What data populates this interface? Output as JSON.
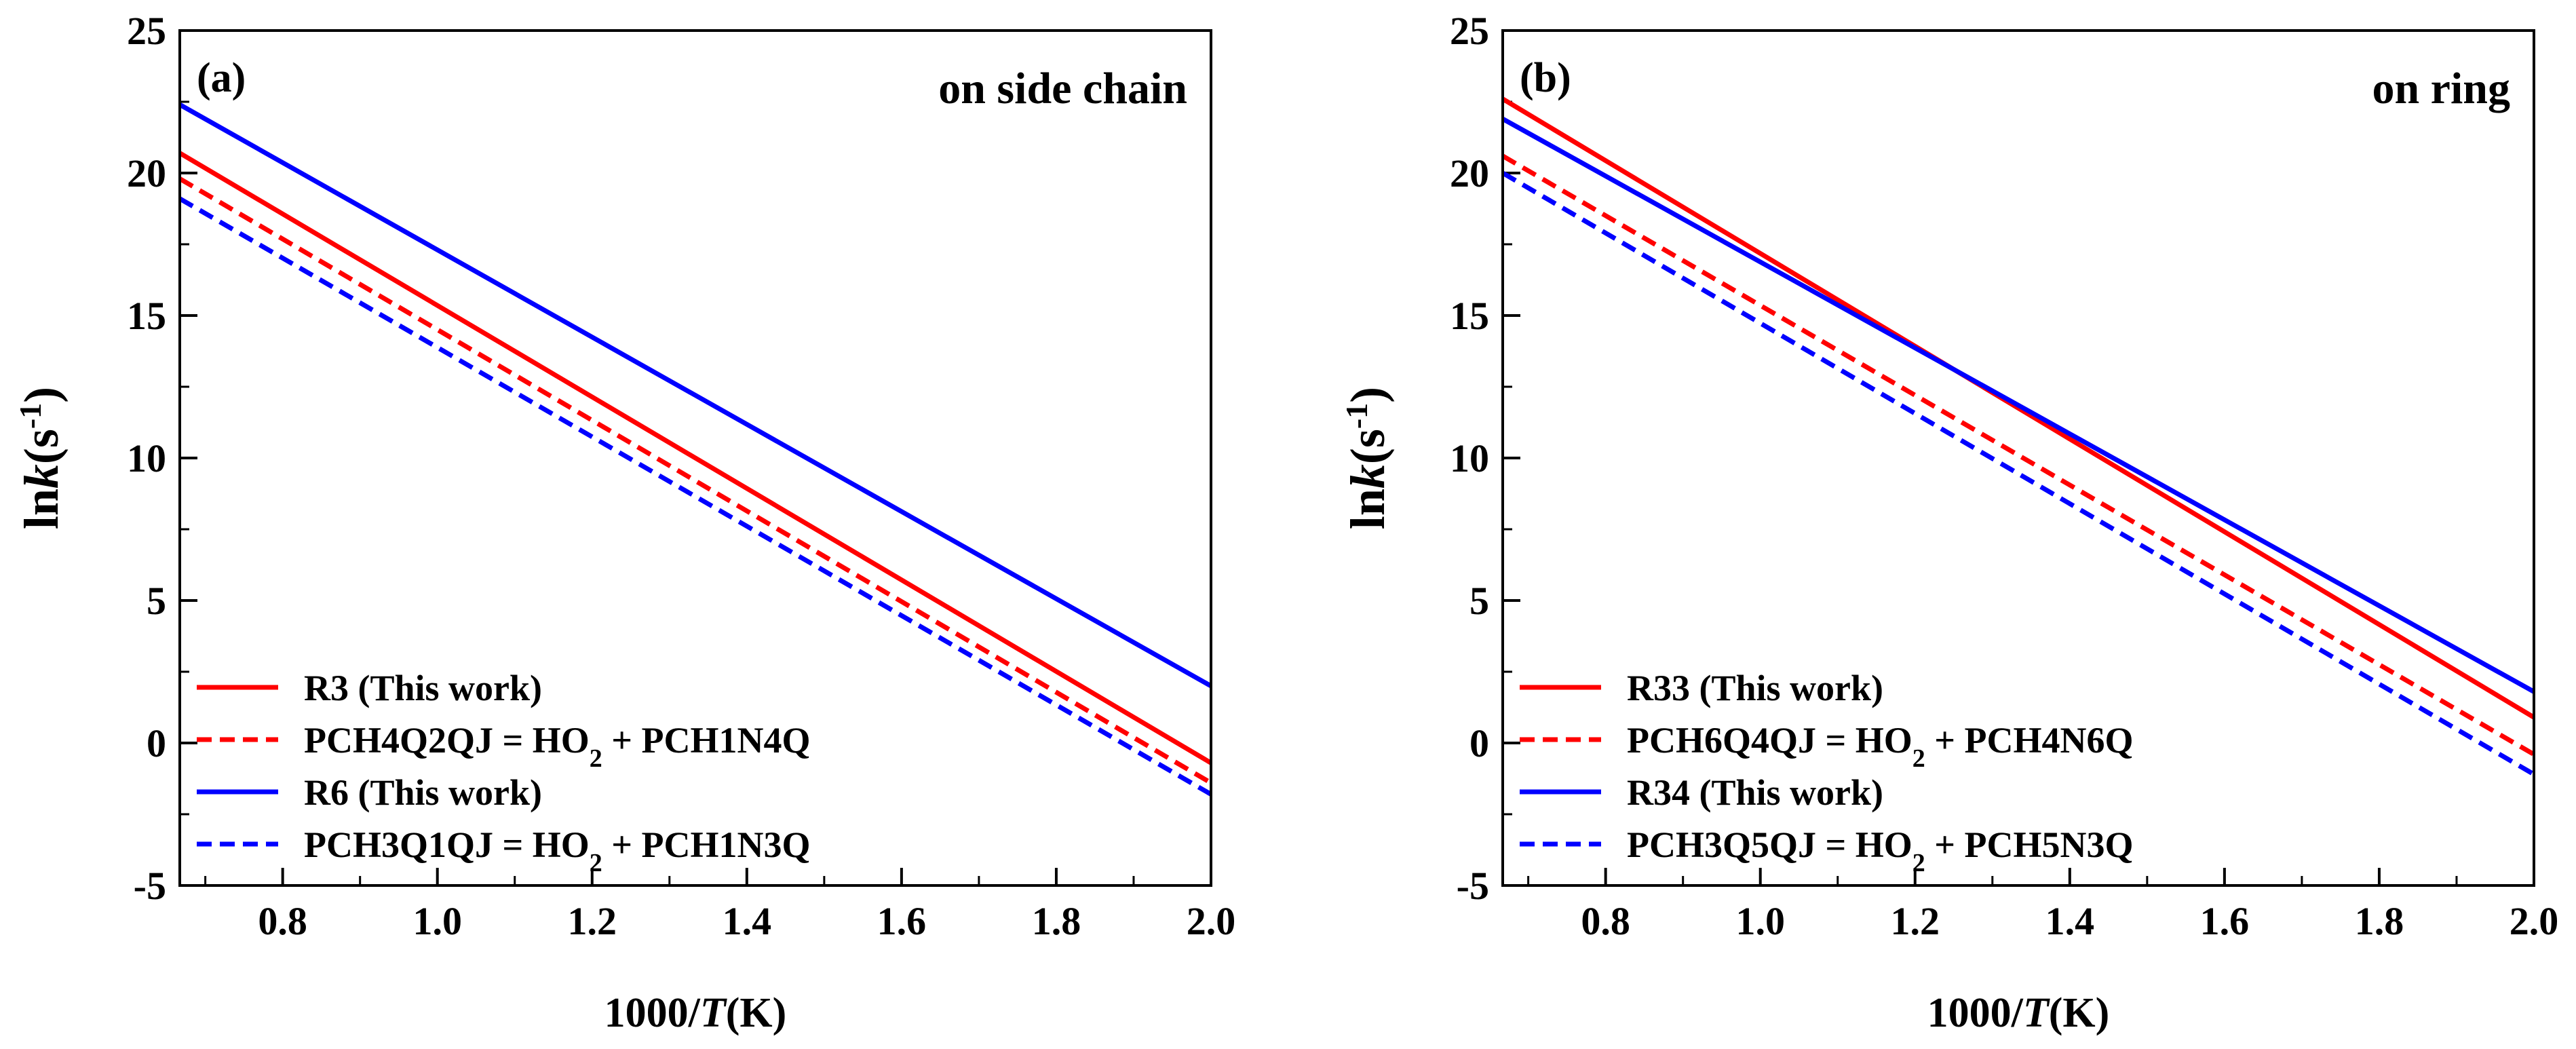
{
  "chart_data": [
    {
      "type": "line",
      "panel_label": "(a)",
      "title": "on side chain",
      "xlabel": {
        "prefix": "1000/",
        "italic": "T",
        "suffix": "(K)"
      },
      "ylabel": {
        "prefix": "ln",
        "italic": "k",
        "suffix": "(s",
        "sup": "-1",
        "close": ")"
      },
      "xlim": [
        0.667,
        2.0
      ],
      "ylim": [
        -5,
        25
      ],
      "xticks": [
        "0.8",
        "1.0",
        "1.2",
        "1.4",
        "1.6",
        "1.8",
        "2.0"
      ],
      "xtick_values": [
        0.8,
        1.0,
        1.2,
        1.4,
        1.6,
        1.8,
        2.0
      ],
      "yticks": [
        "-5",
        "0",
        "5",
        "10",
        "15",
        "20",
        "25"
      ],
      "ytick_values": [
        -5,
        0,
        5,
        10,
        15,
        20,
        25
      ],
      "legend_position": "bottom-left",
      "series": [
        {
          "name": "R3 (This work)",
          "legend": {
            "text": "R3 (This work)"
          },
          "color": "#ff0000",
          "dash": "solid",
          "x": [
            0.667,
            2.0
          ],
          "y": [
            20.7,
            -0.7
          ]
        },
        {
          "name": "PCH4Q2QJ = HO2 + PCH1N4Q",
          "legend": {
            "pre": "PCH4Q2QJ = HO",
            "sub": "2",
            "post": " + PCH1N4Q"
          },
          "color": "#ff0000",
          "dash": "dashed",
          "x": [
            0.667,
            2.0
          ],
          "y": [
            19.8,
            -1.4
          ]
        },
        {
          "name": "R6 (This work)",
          "legend": {
            "text": "R6 (This work)"
          },
          "color": "#0000ff",
          "dash": "solid",
          "x": [
            0.667,
            2.0
          ],
          "y": [
            22.4,
            2.0
          ]
        },
        {
          "name": "PCH3Q1QJ = HO2 + PCH1N3Q",
          "legend": {
            "pre": "PCH3Q1QJ = HO",
            "sub": "2",
            "post": " + PCH1N3Q"
          },
          "color": "#0000ff",
          "dash": "dashed",
          "x": [
            0.667,
            2.0
          ],
          "y": [
            19.1,
            -1.8
          ]
        }
      ]
    },
    {
      "type": "line",
      "panel_label": "(b)",
      "title": "on ring",
      "xlabel": {
        "prefix": "1000/",
        "italic": "T",
        "suffix": "(K)"
      },
      "ylabel": {
        "prefix": "ln",
        "italic": "k",
        "suffix": "(s",
        "sup": "-1",
        "close": ")"
      },
      "xlim": [
        0.667,
        2.0
      ],
      "ylim": [
        -5,
        25
      ],
      "xticks": [
        "0.8",
        "1.0",
        "1.2",
        "1.4",
        "1.6",
        "1.8",
        "2.0"
      ],
      "xtick_values": [
        0.8,
        1.0,
        1.2,
        1.4,
        1.6,
        1.8,
        2.0
      ],
      "yticks": [
        "-5",
        "0",
        "5",
        "10",
        "15",
        "20",
        "25"
      ],
      "ytick_values": [
        -5,
        0,
        5,
        10,
        15,
        20,
        25
      ],
      "legend_position": "bottom-left",
      "series": [
        {
          "name": "R33 (This work)",
          "legend": {
            "text": "R33 (This work)"
          },
          "color": "#ff0000",
          "dash": "solid",
          "x": [
            0.667,
            2.0
          ],
          "y": [
            22.6,
            0.9
          ]
        },
        {
          "name": "PCH6Q4QJ = HO2 + PCH4N6Q",
          "legend": {
            "pre": "PCH6Q4QJ = HO",
            "sub": "2",
            "post": " + PCH4N6Q"
          },
          "color": "#ff0000",
          "dash": "dashed",
          "x": [
            0.667,
            2.0
          ],
          "y": [
            20.6,
            -0.4
          ]
        },
        {
          "name": "R34 (This work)",
          "legend": {
            "text": "R34 (This work)"
          },
          "color": "#0000ff",
          "dash": "solid",
          "x": [
            0.667,
            2.0
          ],
          "y": [
            21.9,
            1.8
          ]
        },
        {
          "name": "PCH3Q5QJ = HO2 + PCH5N3Q",
          "legend": {
            "pre": "PCH3Q5QJ = HO",
            "sub": "2",
            "post": " + PCH5N3Q"
          },
          "color": "#0000ff",
          "dash": "dashed",
          "x": [
            0.667,
            2.0
          ],
          "y": [
            20.0,
            -1.1
          ]
        }
      ]
    }
  ]
}
